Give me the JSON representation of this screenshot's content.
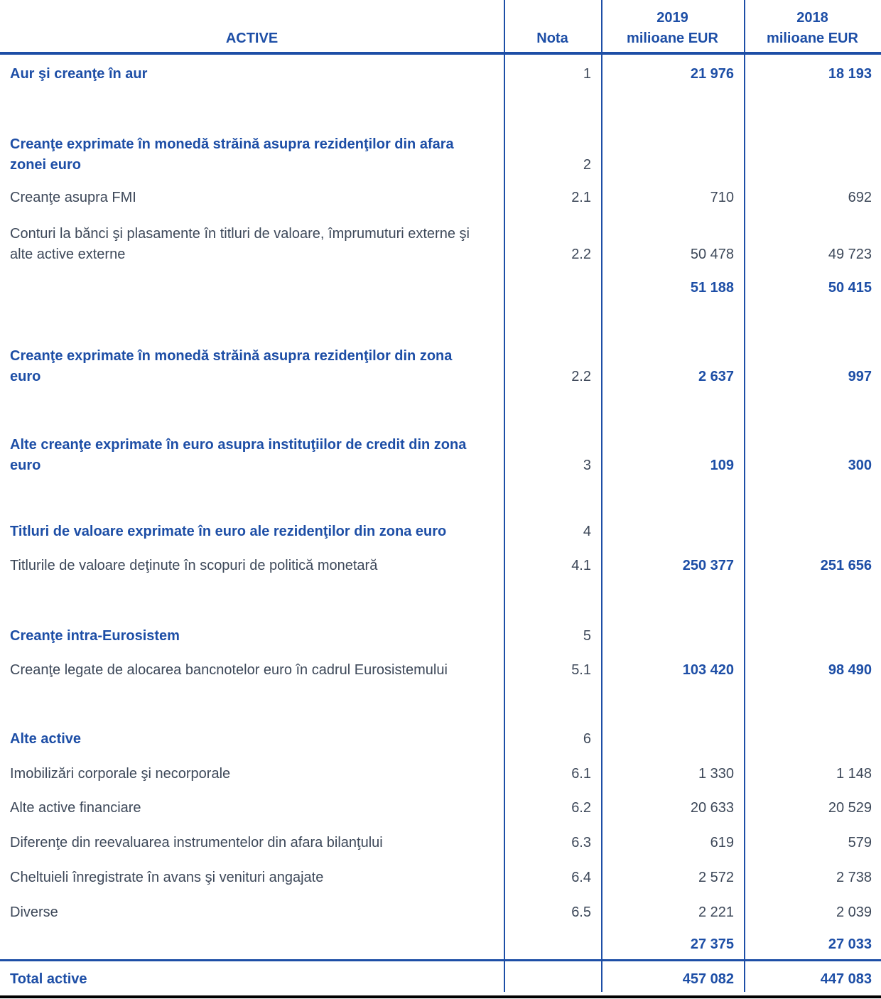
{
  "colors": {
    "accent_blue": "#1d4ea6",
    "regular_text": "#3d4859",
    "bottom_rule_black": "#000000",
    "background": "#ffffff"
  },
  "header": {
    "assets": "ACTIVE",
    "note": "Nota",
    "col2019_year": "2019",
    "col2019_unit": "milioane EUR",
    "col2018_year": "2018",
    "col2018_unit": "milioane EUR"
  },
  "rows": [
    {
      "label": "Aur şi creanţe în aur",
      "note": "1",
      "v2019": "21 976",
      "v2018": "18 193",
      "kind": "section",
      "values_bold": true
    },
    {
      "label": "Creanţe exprimate în monedă străină asupra rezidenţilor din afara zonei euro",
      "note": "2",
      "v2019": "",
      "v2018": "",
      "kind": "section",
      "values_bold": false
    },
    {
      "label": "Creanţe asupra FMI",
      "note": "2.1",
      "v2019": "710",
      "v2018": "692",
      "kind": "item",
      "values_bold": false
    },
    {
      "label": "Conturi la bănci şi plasamente în titluri de valoare, împrumuturi externe şi alte active externe",
      "note": "2.2",
      "v2019": "50 478",
      "v2018": "49 723",
      "kind": "item",
      "values_bold": false
    },
    {
      "label": "",
      "note": "",
      "v2019": "51 188",
      "v2018": "50 415",
      "kind": "subtotal",
      "values_bold": true
    },
    {
      "label": "Creanţe exprimate în monedă străină asupra rezidenţilor din zona euro",
      "note": "2.2",
      "v2019": "2 637",
      "v2018": "997",
      "kind": "section",
      "values_bold": true
    },
    {
      "label": "Alte creanţe exprimate în euro asupra instituţiilor de credit din zona euro",
      "note": "3",
      "v2019": "109",
      "v2018": "300",
      "kind": "section",
      "values_bold": true
    },
    {
      "label": "Titluri de valoare exprimate în euro ale rezidenţilor din zona euro",
      "note": "4",
      "v2019": "",
      "v2018": "",
      "kind": "section",
      "values_bold": false
    },
    {
      "label": "Titlurile de valoare deţinute în scopuri de politică monetară",
      "note": "4.1",
      "v2019": "250 377",
      "v2018": "251 656",
      "kind": "item",
      "values_bold": true
    },
    {
      "label": "Creanţe intra-Eurosistem",
      "note": "5",
      "v2019": "",
      "v2018": "",
      "kind": "section",
      "values_bold": false
    },
    {
      "label": "Creanţe legate de alocarea bancnotelor euro în cadrul Eurosistemului",
      "note": "5.1",
      "v2019": "103 420",
      "v2018": "98 490",
      "kind": "item",
      "values_bold": true
    },
    {
      "label": "Alte active",
      "note": "6",
      "v2019": "",
      "v2018": "",
      "kind": "section",
      "values_bold": false
    },
    {
      "label": "Imobilizări corporale şi necorporale",
      "note": "6.1",
      "v2019": "1 330",
      "v2018": "1 148",
      "kind": "item",
      "values_bold": false
    },
    {
      "label": "Alte active financiare",
      "note": "6.2",
      "v2019": "20 633",
      "v2018": "20 529",
      "kind": "item",
      "values_bold": false
    },
    {
      "label": "Diferenţe din reevaluarea instrumentelor din afara bilanţului",
      "note": "6.3",
      "v2019": "619",
      "v2018": "579",
      "kind": "item",
      "values_bold": false
    },
    {
      "label": "Cheltuieli înregistrate în avans şi venituri angajate",
      "note": "6.4",
      "v2019": "2 572",
      "v2018": "2 738",
      "kind": "item",
      "values_bold": false
    },
    {
      "label": "Diverse",
      "note": "6.5",
      "v2019": "2 221",
      "v2018": "2 039",
      "kind": "item",
      "values_bold": false
    },
    {
      "label": "",
      "note": "",
      "v2019": "27 375",
      "v2018": "27 033",
      "kind": "subtotal",
      "values_bold": true
    },
    {
      "label": "Total active",
      "note": "",
      "v2019": "457 082",
      "v2018": "447 083",
      "kind": "total",
      "values_bold": true
    }
  ]
}
